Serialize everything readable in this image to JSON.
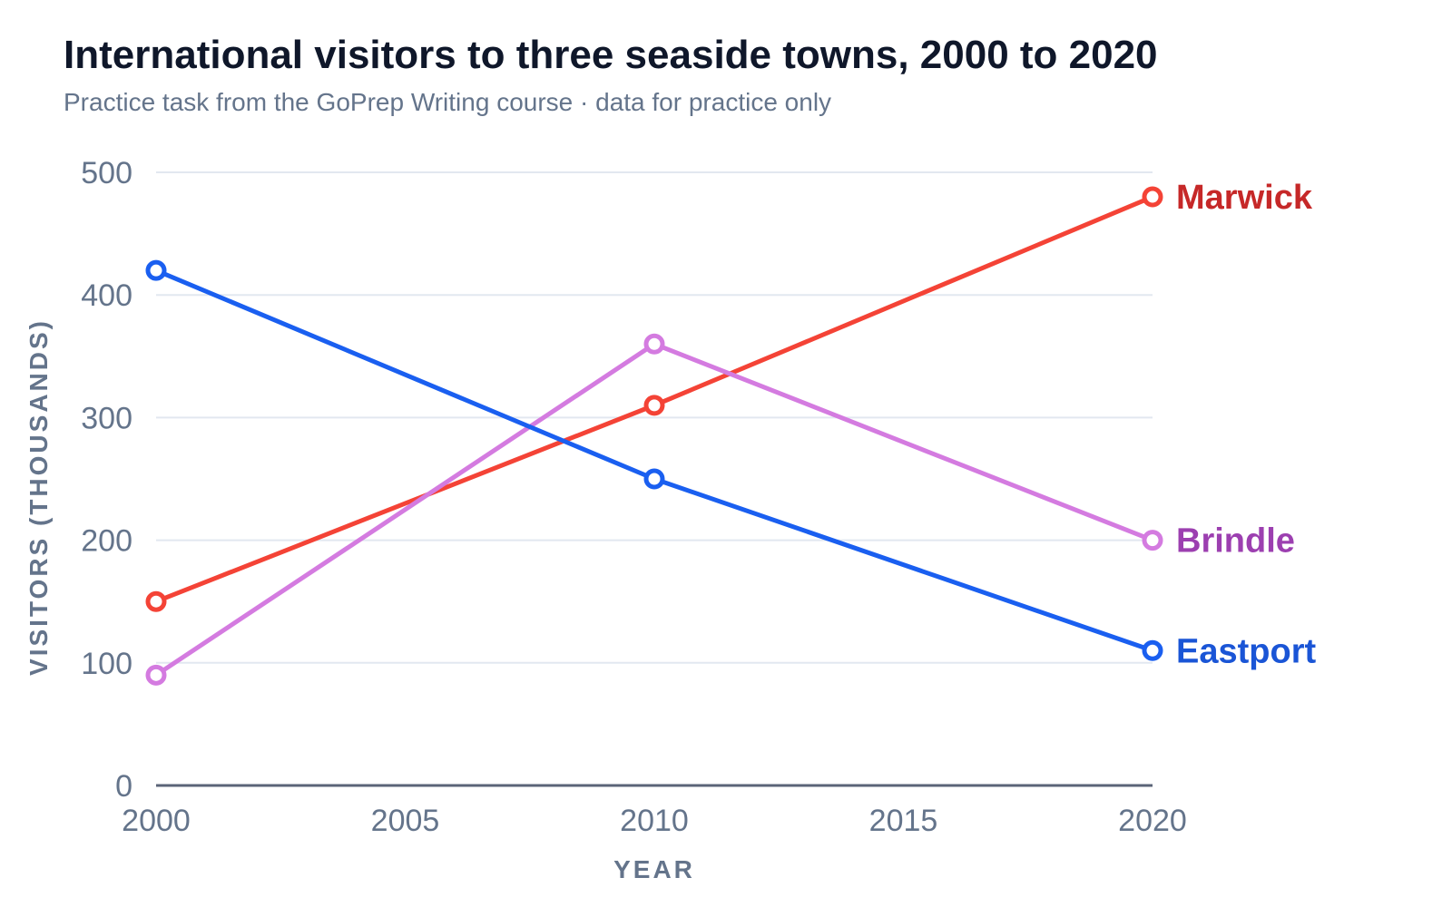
{
  "chart_data": {
    "type": "line",
    "title": "International visitors to three seaside towns, 2000 to 2020",
    "subtitle": "Practice task from the GoPrep Writing course · data for practice only",
    "xlabel": "YEAR",
    "ylabel": "VISITORS (THOUSANDS)",
    "x": [
      2000,
      2010,
      2020
    ],
    "xticks": [
      2000,
      2005,
      2010,
      2015,
      2020
    ],
    "yticks": [
      0,
      100,
      200,
      300,
      400,
      500
    ],
    "xlim": [
      2000,
      2020
    ],
    "ylim": [
      0,
      500
    ],
    "grid": true,
    "legend": "end-of-line labels",
    "series": [
      {
        "name": "Marwick",
        "values": [
          150,
          310,
          480
        ],
        "color": "#f44336",
        "label_color": "#c62828"
      },
      {
        "name": "Brindle",
        "values": [
          90,
          360,
          200
        ],
        "color": "#d47be0",
        "label_color": "#9c3fb0"
      },
      {
        "name": "Eastport",
        "values": [
          420,
          250,
          110
        ],
        "color": "#1a5ff0",
        "label_color": "#1a55d6"
      }
    ]
  }
}
